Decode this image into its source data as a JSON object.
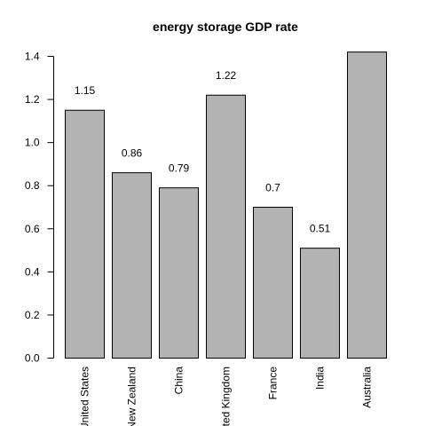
{
  "chart_data": {
    "type": "bar",
    "title": "energy storage GDP rate",
    "categories": [
      "United States",
      "New Zealand",
      "China",
      "United Kingdom",
      "France",
      "India",
      "Australia"
    ],
    "values": [
      1.15,
      0.86,
      0.79,
      1.22,
      0.7,
      0.51,
      1.42
    ],
    "data_labels": [
      "1.15",
      "0.86",
      "0.79",
      "1.22",
      "0.7",
      "0.51",
      ""
    ],
    "ylim": [
      0,
      1.4
    ],
    "yticks": [
      "0.0",
      "0.2",
      "0.4",
      "0.6",
      "0.8",
      "1.0",
      "1.2",
      "1.4"
    ],
    "xlabel": "",
    "ylabel": "",
    "grid": false,
    "bar_color": "#b3b3b3"
  }
}
